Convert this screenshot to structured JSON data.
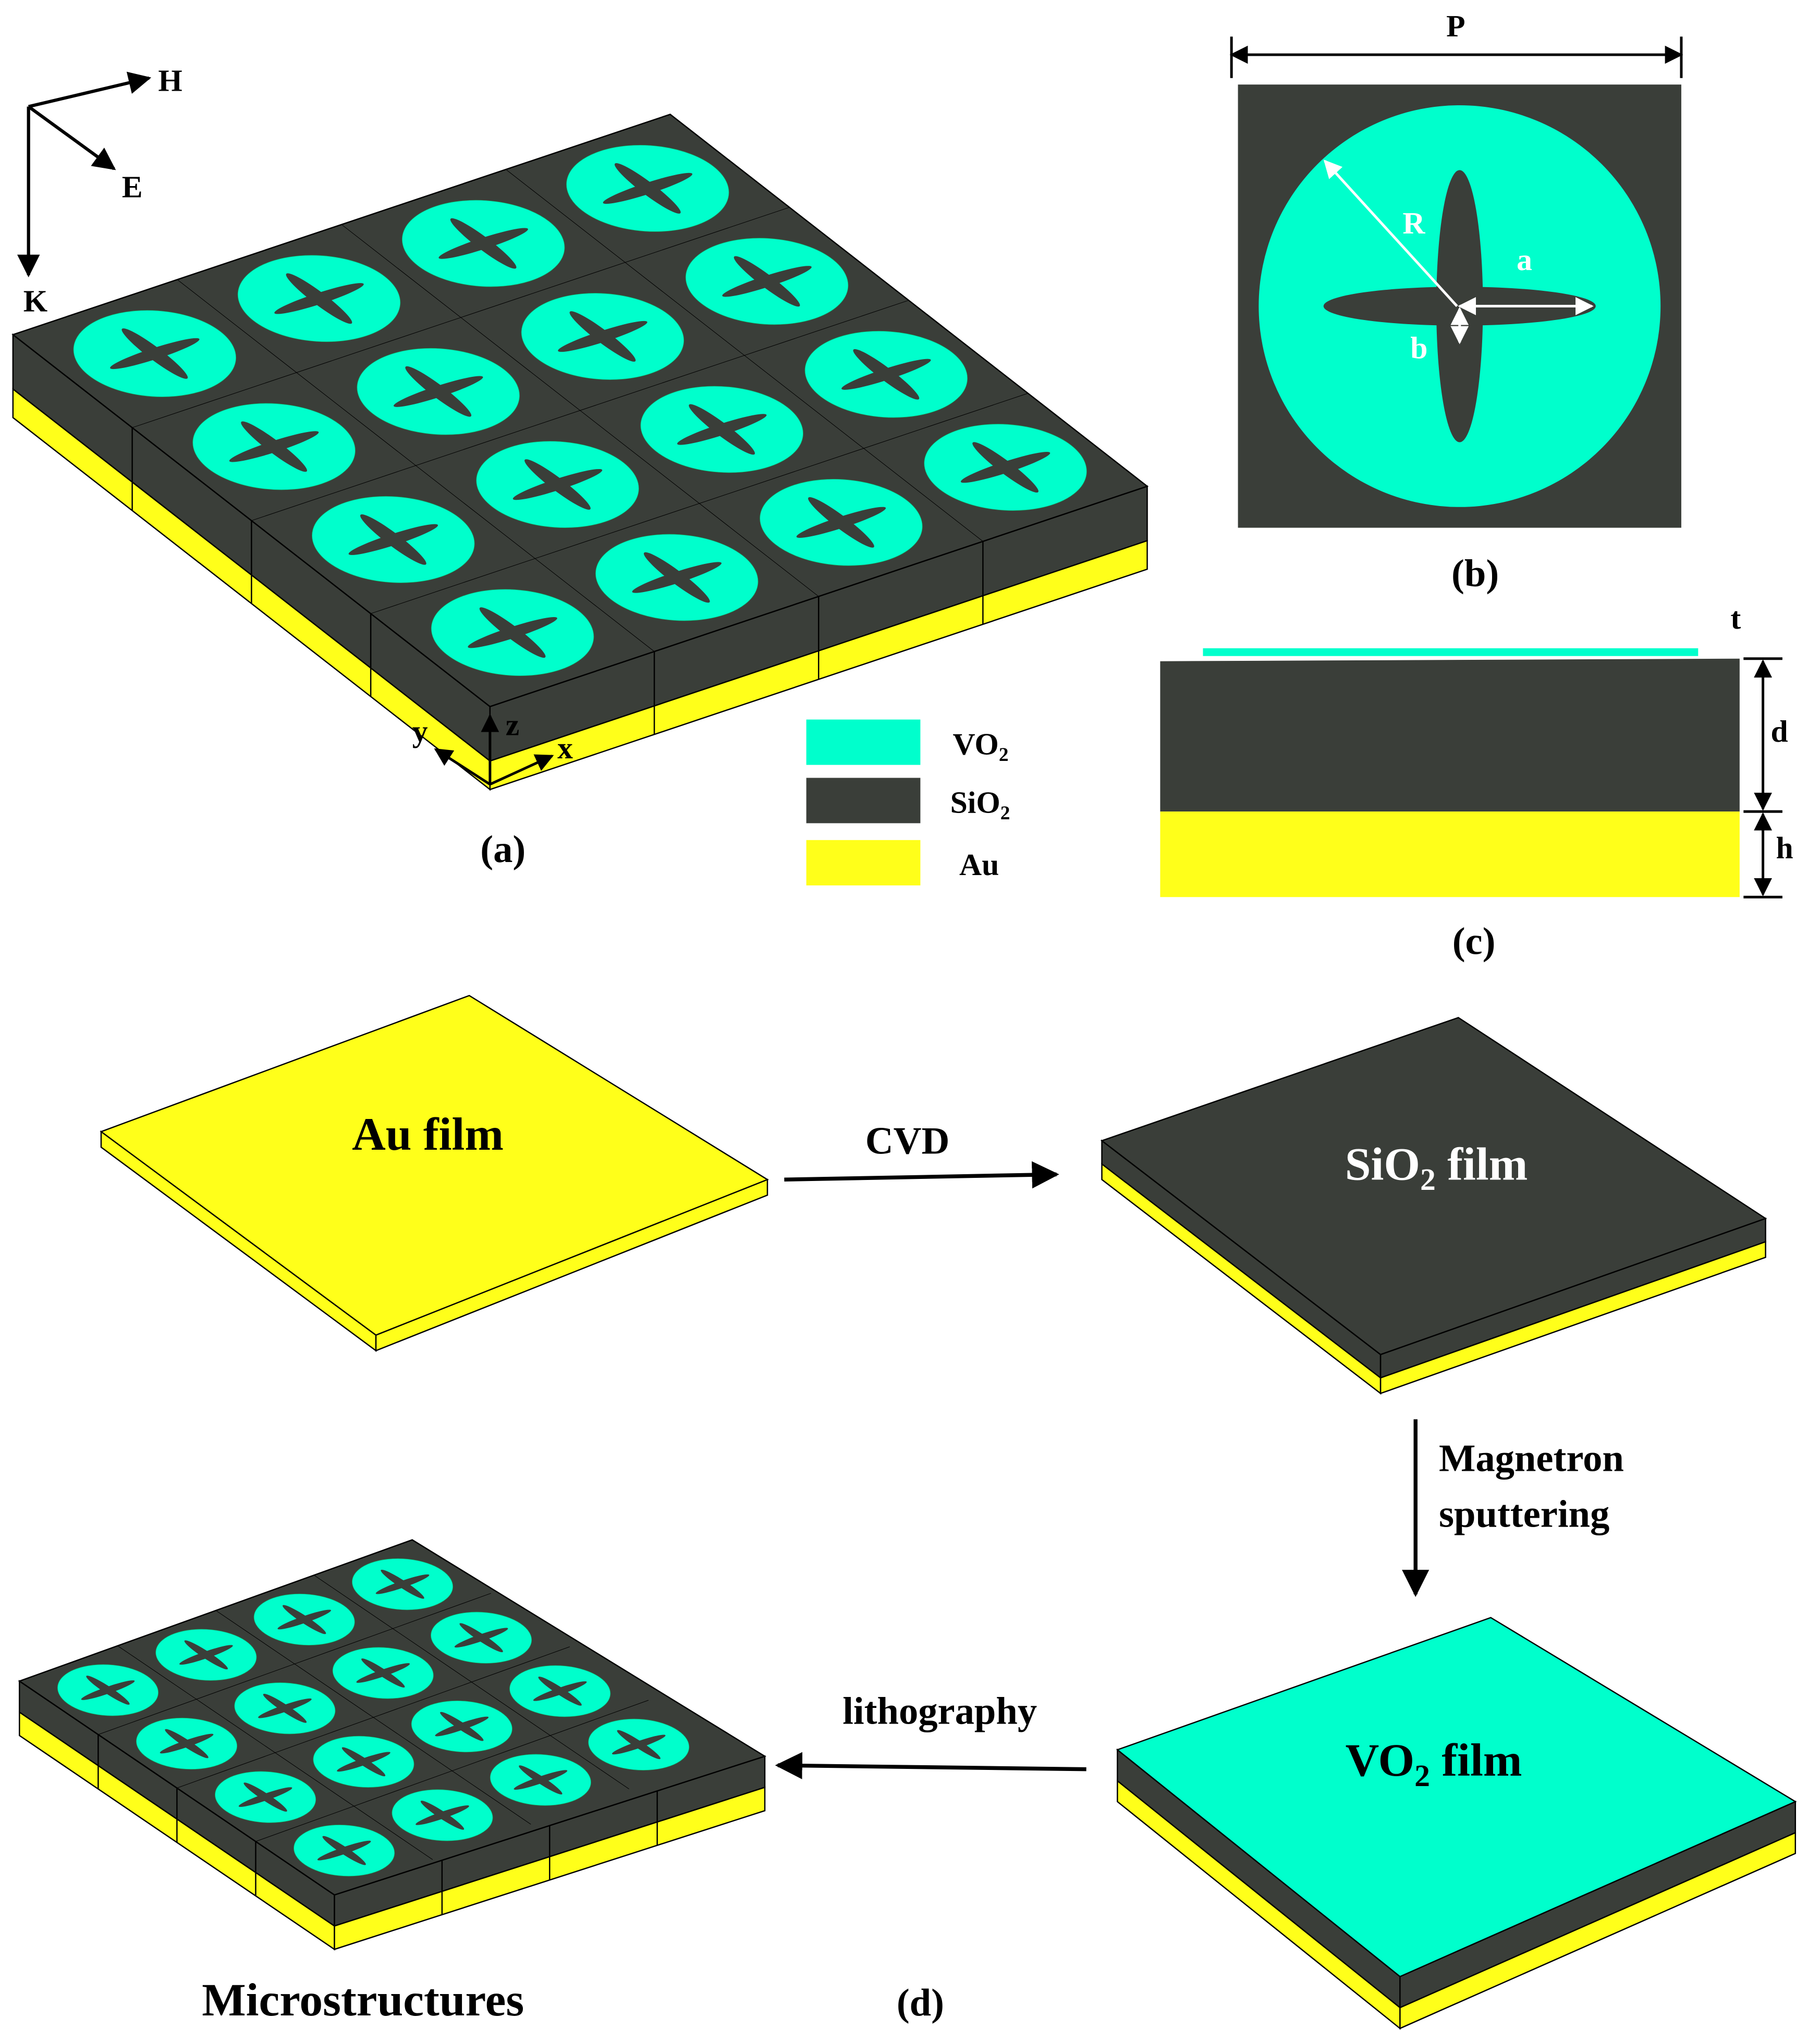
{
  "panel_a": {
    "wave": {
      "h": "H",
      "e": "E",
      "k": "K"
    },
    "coords": {
      "x": "x",
      "y": "y",
      "z": "z"
    },
    "label": "(a)"
  },
  "legend": [
    {
      "main": "VO",
      "sub": "2"
    },
    {
      "main": "SiO",
      "sub": "2"
    },
    {
      "main": "Au"
    }
  ],
  "panel_b": {
    "p": "P",
    "r": "R",
    "a": "a",
    "b": "b",
    "label": "(b)"
  },
  "panel_c": {
    "t": "t",
    "d": "d",
    "h": "h",
    "label": "(c)"
  },
  "panel_d": {
    "au_film": "Au film",
    "cvd": "CVD",
    "sio2_film": {
      "main": "SiO",
      "sub": "2",
      "rest": " film"
    },
    "magnetron": [
      "Magnetron",
      "sputtering"
    ],
    "vo2_film": {
      "main": "VO",
      "sub": "2",
      "rest": " film"
    },
    "lithography": "lithography",
    "microstructures": "Microstructures",
    "label": "(d)"
  }
}
